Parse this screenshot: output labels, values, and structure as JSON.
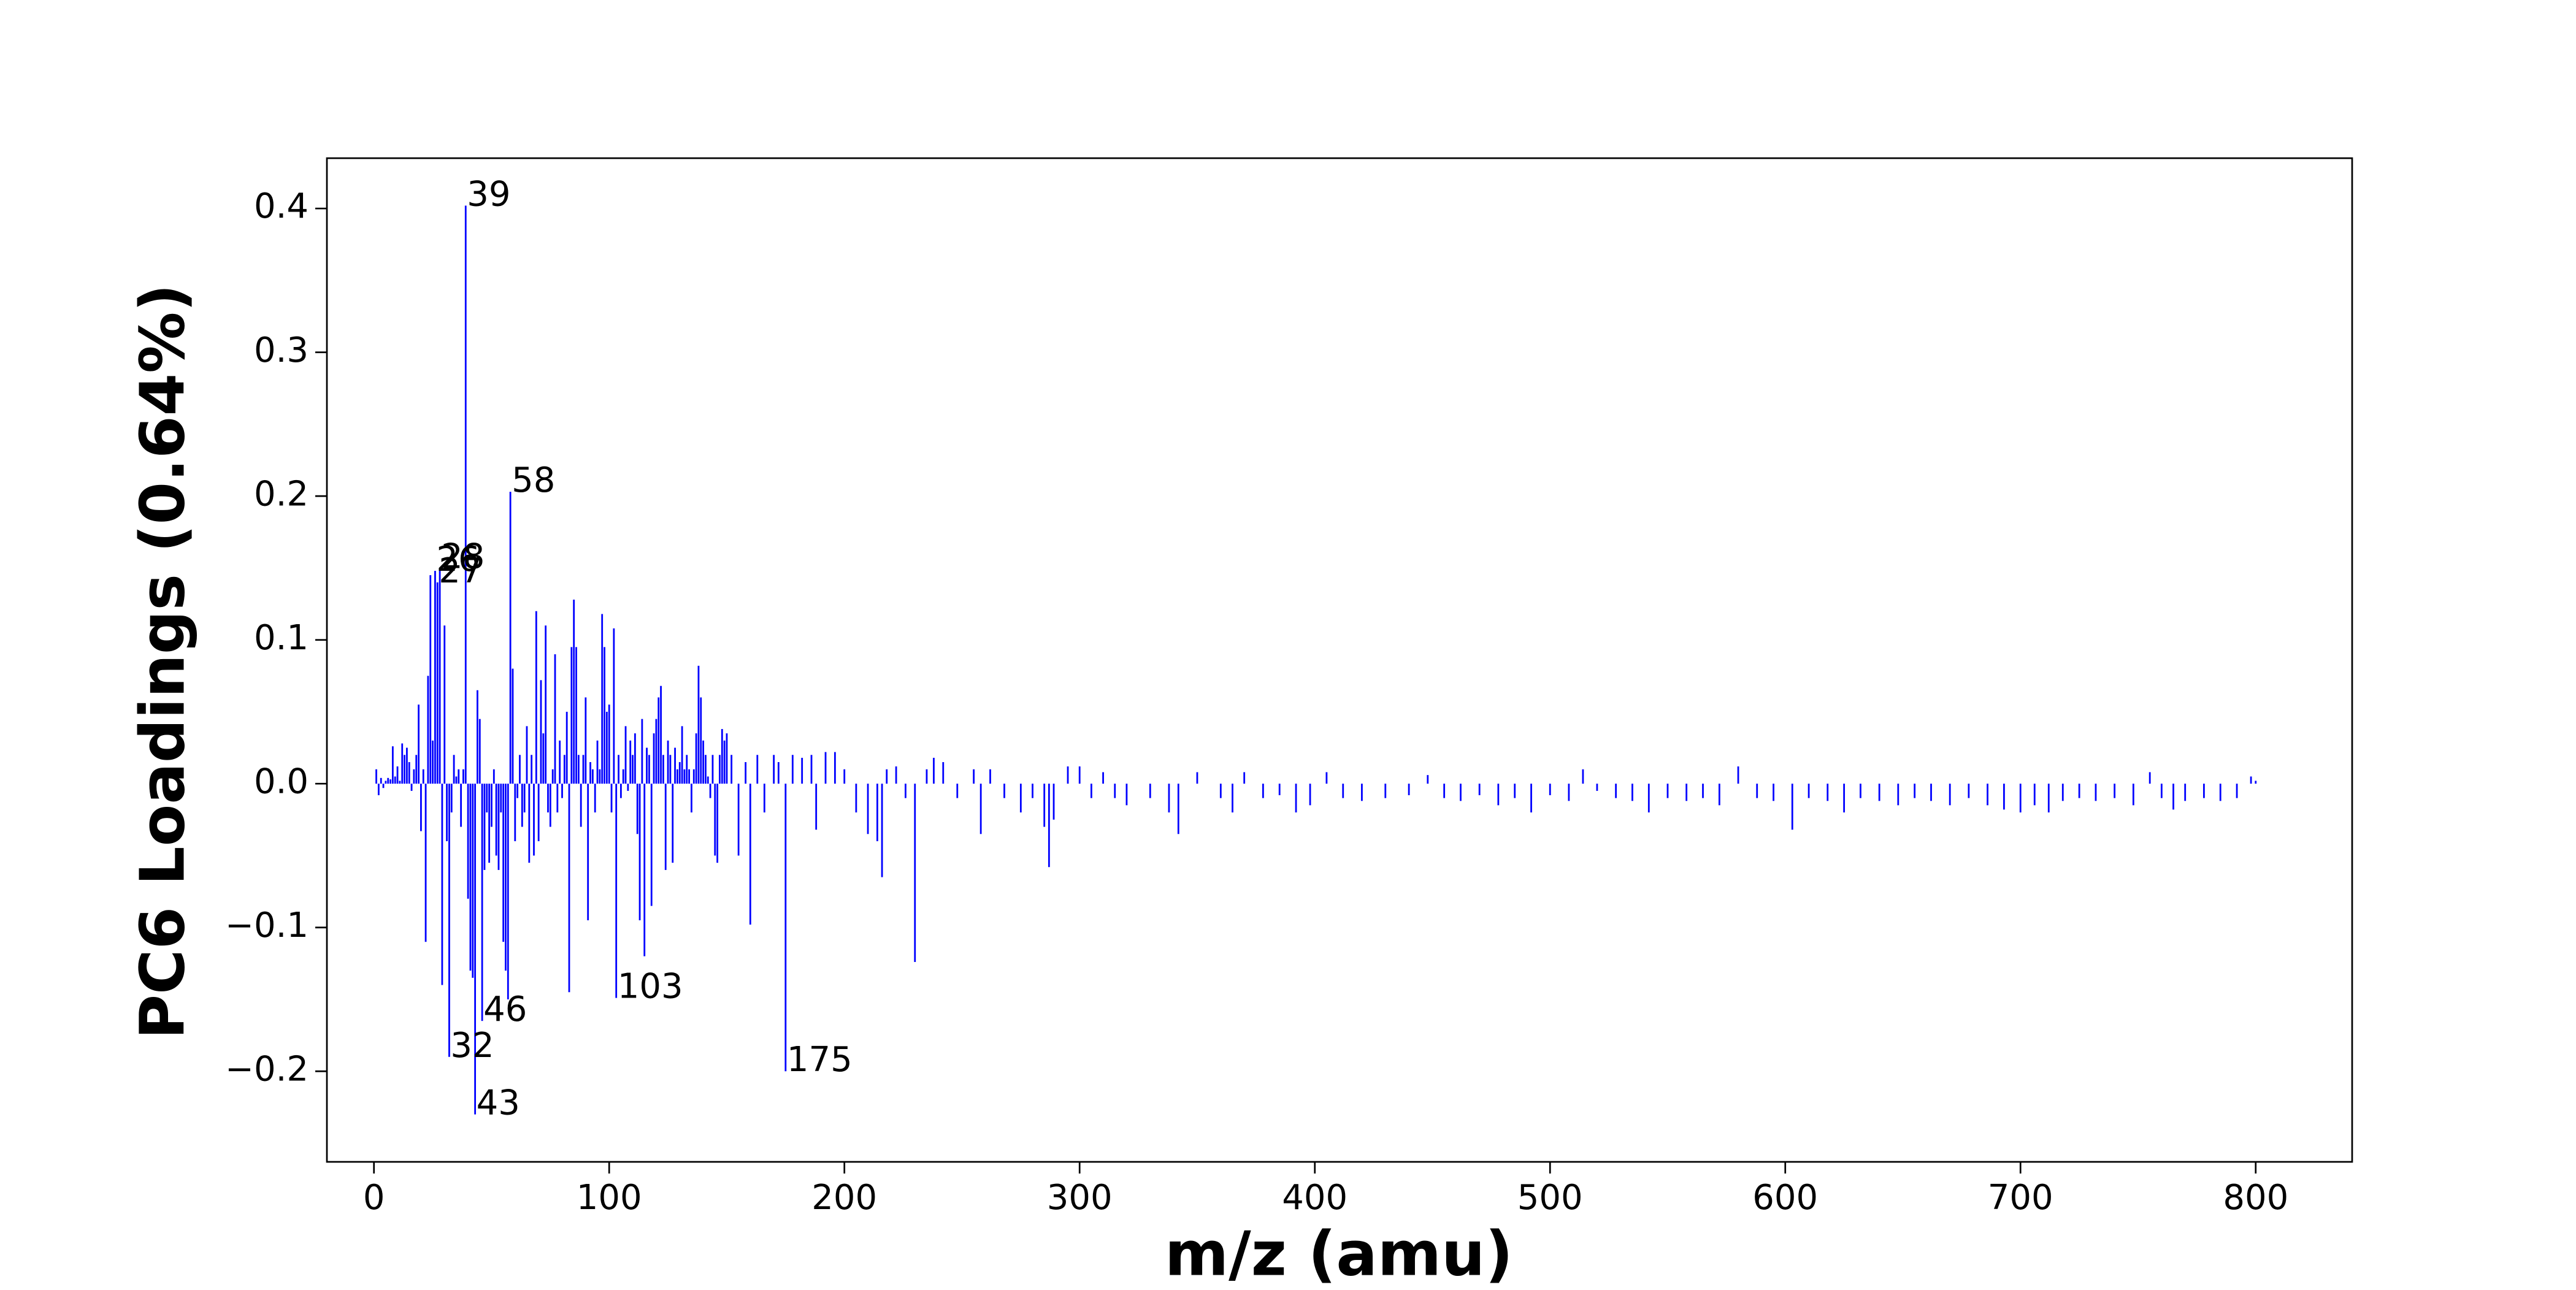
{
  "chart_data": {
    "type": "bar",
    "xlabel": "m/z (amu)",
    "ylabel": "PC6 Loadings (0.64%)",
    "color": "#0000ff",
    "xlim": [
      -20,
      841
    ],
    "ylim": [
      -0.263,
      0.435
    ],
    "xticks": [
      0,
      100,
      200,
      300,
      400,
      500,
      600,
      700,
      800
    ],
    "yticks": [
      {
        "value": -0.2,
        "label": "−0.2"
      },
      {
        "value": -0.1,
        "label": "−0.1"
      },
      {
        "value": 0,
        "label": "0.0"
      },
      0.1,
      0.2,
      0.3,
      0.4
    ],
    "x": [
      1,
      2,
      3,
      4,
      5,
      6,
      7,
      8,
      9,
      10,
      11,
      12,
      13,
      14,
      15,
      16,
      17,
      18,
      19,
      20,
      21,
      22,
      23,
      24,
      25,
      26,
      27,
      28,
      29,
      30,
      31,
      32,
      33,
      34,
      35,
      36,
      37,
      38,
      39,
      40,
      41,
      42,
      43,
      44,
      45,
      46,
      47,
      48,
      49,
      50,
      51,
      52,
      53,
      54,
      55,
      56,
      57,
      58,
      59,
      60,
      61,
      62,
      63,
      64,
      65,
      66,
      67,
      68,
      69,
      70,
      71,
      72,
      73,
      74,
      75,
      76,
      77,
      78,
      79,
      80,
      81,
      82,
      83,
      84,
      85,
      86,
      87,
      88,
      89,
      90,
      91,
      92,
      93,
      94,
      95,
      96,
      97,
      98,
      99,
      100,
      101,
      102,
      103,
      104,
      105,
      106,
      107,
      108,
      109,
      110,
      111,
      112,
      113,
      114,
      115,
      116,
      117,
      118,
      119,
      120,
      121,
      122,
      123,
      124,
      125,
      126,
      127,
      128,
      129,
      130,
      131,
      132,
      133,
      134,
      135,
      136,
      137,
      138,
      139,
      140,
      141,
      142,
      143,
      144,
      145,
      146,
      147,
      148,
      149,
      150,
      152,
      155,
      158,
      160,
      163,
      166,
      170,
      172,
      175,
      178,
      182,
      186,
      188,
      192,
      196,
      200,
      205,
      210,
      214,
      216,
      218,
      222,
      226,
      230,
      235,
      238,
      242,
      248,
      255,
      258,
      262,
      268,
      275,
      280,
      285,
      287,
      289,
      295,
      300,
      305,
      310,
      315,
      320,
      330,
      338,
      342,
      350,
      360,
      365,
      370,
      378,
      385,
      392,
      398,
      405,
      412,
      420,
      430,
      440,
      448,
      455,
      462,
      470,
      478,
      485,
      492,
      500,
      508,
      514,
      520,
      528,
      535,
      542,
      550,
      558,
      565,
      572,
      580,
      588,
      595,
      603,
      610,
      618,
      625,
      632,
      640,
      648,
      655,
      662,
      670,
      678,
      686,
      693,
      700,
      706,
      712,
      718,
      725,
      732,
      740,
      748,
      755,
      760,
      765,
      770,
      778,
      785,
      792,
      798,
      800
    ],
    "values": [
      0.01,
      -0.008,
      0.004,
      -0.003,
      0.002,
      0.004,
      0.003,
      0.026,
      0.005,
      0.012,
      0.002,
      0.028,
      0.02,
      0.025,
      0.015,
      -0.005,
      0.01,
      0.02,
      0.055,
      -0.033,
      0.01,
      -0.11,
      0.075,
      0.145,
      0.03,
      0.148,
      0.14,
      0.15,
      -0.14,
      0.11,
      -0.04,
      -0.19,
      -0.02,
      0.02,
      0.005,
      0.01,
      -0.03,
      0.01,
      0.402,
      -0.08,
      -0.13,
      -0.135,
      -0.23,
      0.065,
      0.045,
      -0.165,
      -0.06,
      -0.02,
      -0.055,
      -0.03,
      0.01,
      -0.05,
      -0.06,
      -0.02,
      -0.11,
      -0.13,
      -0.15,
      0.203,
      0.08,
      -0.04,
      -0.01,
      0.02,
      -0.03,
      -0.02,
      0.04,
      -0.055,
      0.02,
      -0.05,
      0.12,
      -0.04,
      0.072,
      0.035,
      0.11,
      -0.02,
      -0.03,
      0.01,
      0.09,
      -0.02,
      0.03,
      -0.01,
      0.02,
      0.05,
      -0.145,
      0.095,
      0.128,
      0.095,
      0.02,
      -0.03,
      0.02,
      0.06,
      -0.095,
      0.015,
      0.01,
      -0.02,
      0.03,
      0.01,
      0.118,
      0.095,
      0.05,
      0.055,
      -0.02,
      0.108,
      -0.149,
      0.02,
      -0.01,
      0.01,
      0.04,
      -0.005,
      0.03,
      0.02,
      0.035,
      -0.035,
      -0.095,
      0.045,
      -0.12,
      0.025,
      0.02,
      -0.085,
      0.035,
      0.045,
      0.06,
      0.068,
      0.02,
      -0.06,
      0.03,
      0.02,
      -0.055,
      0.025,
      0.01,
      0.015,
      0.04,
      0.01,
      0.02,
      0.01,
      -0.02,
      0.01,
      0.035,
      0.082,
      0.06,
      0.03,
      0.02,
      0.005,
      -0.01,
      0.02,
      -0.05,
      -0.055,
      0.02,
      0.038,
      0.03,
      0.035,
      0.02,
      -0.05,
      0.015,
      -0.098,
      0.02,
      -0.02,
      0.02,
      0.015,
      -0.2,
      0.02,
      0.018,
      0.02,
      -0.032,
      0.022,
      0.022,
      0.01,
      -0.02,
      -0.035,
      -0.04,
      -0.065,
      0.01,
      0.012,
      -0.01,
      -0.124,
      0.01,
      0.018,
      0.015,
      -0.01,
      0.01,
      -0.035,
      0.01,
      -0.01,
      -0.02,
      -0.01,
      -0.03,
      -0.058,
      -0.025,
      0.012,
      0.012,
      -0.01,
      0.008,
      -0.01,
      -0.015,
      -0.01,
      -0.02,
      -0.035,
      0.008,
      -0.01,
      -0.02,
      0.008,
      -0.01,
      -0.008,
      -0.02,
      -0.015,
      0.008,
      -0.01,
      -0.012,
      -0.01,
      -0.008,
      0.006,
      -0.01,
      -0.012,
      -0.008,
      -0.015,
      -0.01,
      -0.02,
      -0.008,
      -0.012,
      0.01,
      -0.005,
      -0.01,
      -0.012,
      -0.02,
      -0.01,
      -0.012,
      -0.01,
      -0.015,
      0.012,
      -0.01,
      -0.012,
      -0.032,
      -0.01,
      -0.012,
      -0.02,
      -0.01,
      -0.012,
      -0.015,
      -0.01,
      -0.012,
      -0.015,
      -0.01,
      -0.015,
      -0.018,
      -0.02,
      -0.015,
      -0.02,
      -0.012,
      -0.01,
      -0.012,
      -0.01,
      -0.015,
      0.008,
      -0.01,
      -0.018,
      -0.012,
      -0.01,
      -0.012,
      -0.01,
      0.005,
      0.002
    ],
    "annotations": [
      {
        "text": "39",
        "x": 39,
        "y": 0.402
      },
      {
        "text": "58",
        "x": 58,
        "y": 0.203
      },
      {
        "text": "26",
        "x": 26,
        "y": 0.148
      },
      {
        "text": "28",
        "x": 28,
        "y": 0.15
      },
      {
        "text": "27",
        "x": 27,
        "y": 0.14
      },
      {
        "text": "103",
        "x": 103,
        "y": -0.149
      },
      {
        "text": "46",
        "x": 46,
        "y": -0.165
      },
      {
        "text": "32",
        "x": 32,
        "y": -0.19
      },
      {
        "text": "43",
        "x": 43,
        "y": -0.23
      },
      {
        "text": "175",
        "x": 175,
        "y": -0.2
      }
    ]
  }
}
